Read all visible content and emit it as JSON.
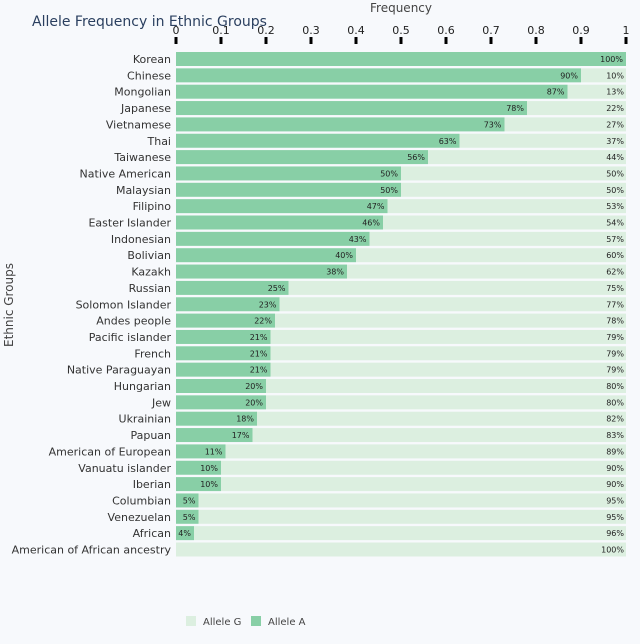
{
  "chart_data": {
    "type": "bar",
    "orientation": "horizontal",
    "stacked": true,
    "title": "Allele Frequency in Ethnic Groups",
    "xlabel": "Frequency",
    "ylabel": "Ethnic Groups",
    "xlim": [
      0,
      1
    ],
    "xticks": [
      "0",
      "0.1",
      "0.2",
      "0.3",
      "0.4",
      "0.5",
      "0.6",
      "0.7",
      "0.8",
      "0.9",
      "1"
    ],
    "x_axis_position": "top",
    "legend_position": "bottom-left",
    "categories": [
      "Korean",
      "Chinese",
      "Mongolian",
      "Japanese",
      "Vietnamese",
      "Thai",
      "Taiwanese",
      "Native American",
      "Malaysian",
      "Filipino",
      "Easter Islander",
      "Indonesian",
      "Bolivian",
      "Kazakh",
      "Russian",
      "Solomon Islander",
      "Andes people",
      "Pacific islander",
      "French",
      "Native Paraguayan",
      "Hungarian",
      "Jew",
      "Ukrainian",
      "Papuan",
      "American of European",
      "Vanuatu islander",
      "Iberian",
      "Columbian",
      "Venezuelan",
      "African",
      "American of African ancestry"
    ],
    "series": [
      {
        "name": "Allele A",
        "color": "#88cfa6",
        "values": [
          1.0,
          0.9,
          0.87,
          0.78,
          0.73,
          0.63,
          0.56,
          0.5,
          0.5,
          0.47,
          0.46,
          0.43,
          0.4,
          0.38,
          0.25,
          0.23,
          0.22,
          0.21,
          0.21,
          0.21,
          0.2,
          0.2,
          0.18,
          0.17,
          0.11,
          0.1,
          0.1,
          0.05,
          0.05,
          0.04,
          0.0
        ],
        "labels": [
          "100%",
          "90%",
          "87%",
          "78%",
          "73%",
          "63%",
          "56%",
          "50%",
          "50%",
          "47%",
          "46%",
          "43%",
          "40%",
          "38%",
          "25%",
          "23%",
          "22%",
          "21%",
          "21%",
          "21%",
          "20%",
          "20%",
          "18%",
          "17%",
          "11%",
          "10%",
          "10%",
          "5%",
          "5%",
          "4%",
          ""
        ]
      },
      {
        "name": "Allele G",
        "color": "#dcefe0",
        "values": [
          0.0,
          0.1,
          0.13,
          0.22,
          0.27,
          0.37,
          0.44,
          0.5,
          0.5,
          0.53,
          0.54,
          0.57,
          0.6,
          0.62,
          0.75,
          0.77,
          0.78,
          0.79,
          0.79,
          0.79,
          0.8,
          0.8,
          0.82,
          0.83,
          0.89,
          0.9,
          0.9,
          0.95,
          0.95,
          0.96,
          1.0
        ],
        "labels": [
          "",
          "10%",
          "13%",
          "22%",
          "27%",
          "37%",
          "44%",
          "50%",
          "50%",
          "53%",
          "54%",
          "57%",
          "60%",
          "62%",
          "75%",
          "77%",
          "78%",
          "79%",
          "79%",
          "79%",
          "80%",
          "80%",
          "82%",
          "83%",
          "89%",
          "90%",
          "90%",
          "95%",
          "95%",
          "96%",
          "100%"
        ]
      }
    ],
    "legend": [
      "Allele G",
      "Allele A"
    ]
  }
}
